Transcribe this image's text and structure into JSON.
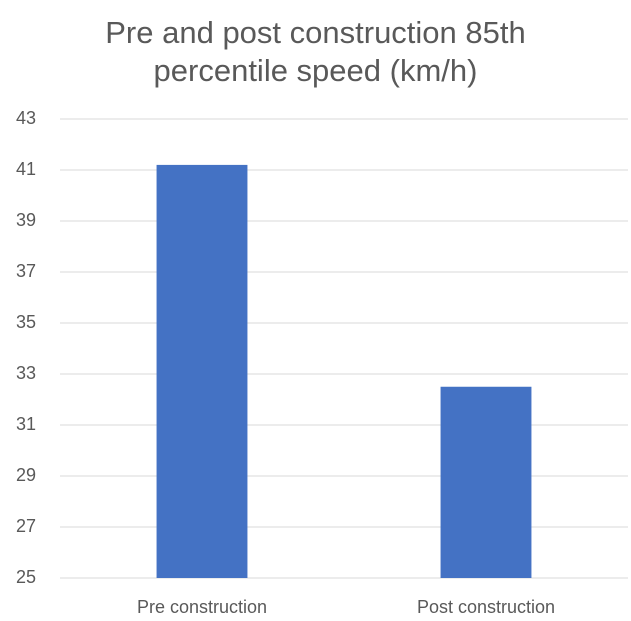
{
  "chart_data": {
    "type": "bar",
    "title": "Pre and post construction 85th percentile speed (km/h)",
    "categories": [
      "Pre construction",
      "Post construction"
    ],
    "values": [
      41.2,
      32.5
    ],
    "color": "#4472c4",
    "ylim": [
      25,
      43
    ],
    "yticks": [
      25,
      27,
      29,
      31,
      33,
      35,
      37,
      39,
      41,
      43
    ],
    "grid": true
  }
}
